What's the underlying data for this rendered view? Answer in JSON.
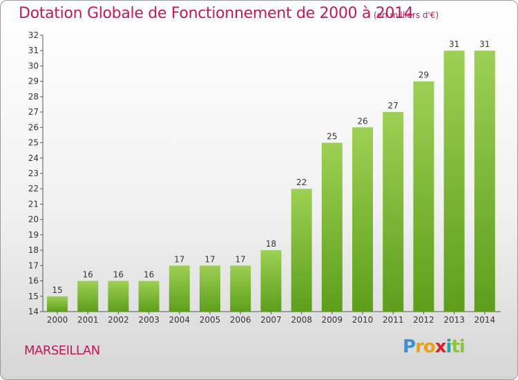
{
  "header": {
    "title": "Dotation Globale de Fonctionnement de 2000 à 2014",
    "subtitle": "(en milliers d'€)"
  },
  "footer": {
    "commune": "MARSEILLAN",
    "logo_letters": [
      {
        "ch": "P",
        "color": "#3a8fd8"
      },
      {
        "ch": "r",
        "color": "#e8a21a"
      },
      {
        "ch": "o",
        "color": "#e8a21a"
      },
      {
        "ch": "x",
        "color": "#d8232a"
      },
      {
        "ch": "i",
        "color": "#1fa3a8"
      },
      {
        "ch": "t",
        "color": "#8cc63f"
      },
      {
        "ch": "i",
        "color": "#8cc63f"
      }
    ]
  },
  "colors": {
    "accent": "#c2185b",
    "bar_light": "#9dd054",
    "bar_dark": "#5e9e1c"
  },
  "chart_data": {
    "type": "bar",
    "categories": [
      "2000",
      "2001",
      "2002",
      "2003",
      "2004",
      "2005",
      "2006",
      "2007",
      "2008",
      "2009",
      "2010",
      "2011",
      "2012",
      "2013",
      "2014"
    ],
    "values": [
      15,
      16,
      16,
      16,
      17,
      17,
      17,
      18,
      22,
      25,
      26,
      27,
      29,
      31,
      31
    ],
    "title": "Dotation Globale de Fonctionnement de 2000 à 2014",
    "subtitle": "(en milliers d'€)",
    "xlabel": "",
    "ylabel": "",
    "ylim": [
      14,
      32
    ],
    "yticks": [
      14,
      15,
      16,
      17,
      18,
      19,
      20,
      21,
      22,
      23,
      24,
      25,
      26,
      27,
      28,
      29,
      30,
      31,
      32
    ],
    "grid": false,
    "data_labels": true
  }
}
